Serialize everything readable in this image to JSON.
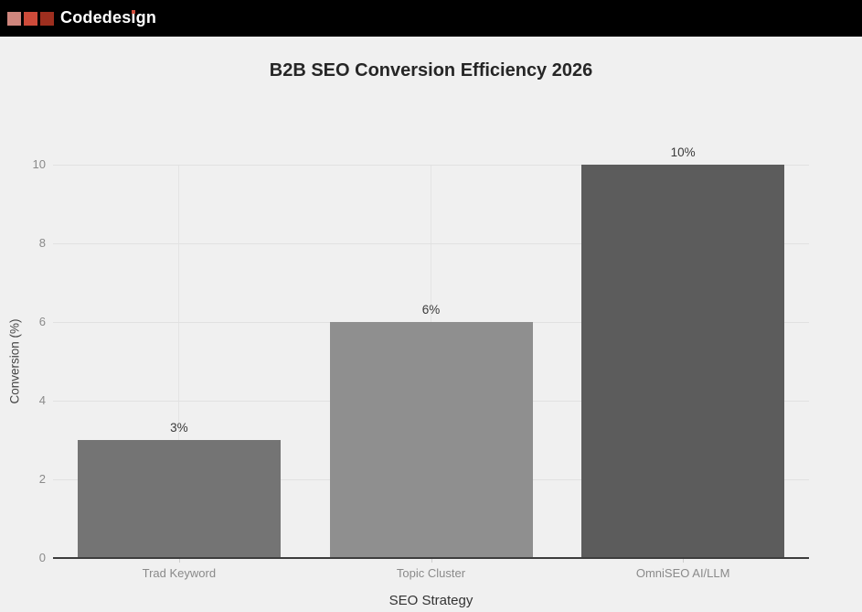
{
  "header": {
    "brand": "Codedesign",
    "logo_colors": [
      "#cf867d",
      "#ce4b3a",
      "#9e2f1f"
    ],
    "background": "#000000",
    "text_color": "#ffffff",
    "accent_color": "#ce4b3a"
  },
  "chart_data": {
    "type": "bar",
    "title": "B2B SEO Conversion Efficiency 2026",
    "xlabel": "SEO Strategy",
    "ylabel": "Conversion (%)",
    "categories": [
      "Trad Keyword",
      "Topic Cluster",
      "OmniSEO AI/LLM"
    ],
    "values": [
      3,
      6,
      10
    ],
    "value_labels": [
      "3%",
      "6%",
      "10%"
    ],
    "bar_colors": [
      "#747474",
      "#8f8f8f",
      "#5c5c5c"
    ],
    "yticks": [
      0,
      2,
      4,
      6,
      8,
      10
    ],
    "ylim": [
      0,
      10
    ],
    "grid": true,
    "legend": false,
    "background": "#f0f0f0"
  }
}
